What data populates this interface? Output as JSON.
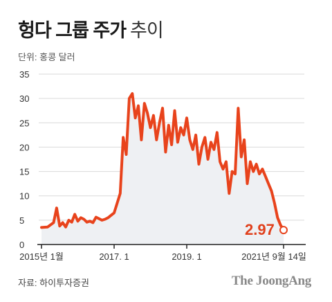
{
  "header": {
    "title_bold": "헝다 그룹 주가",
    "title_light": "추이",
    "unit": "단위: 홍콩 달러"
  },
  "footer": {
    "source": "자료: 하이투자증권",
    "brand": "The JoongAng"
  },
  "colors": {
    "line": "#e8431c",
    "area": "#eef0f3",
    "grid": "#d9d9d9",
    "axis": "#222222"
  },
  "chart_data": {
    "type": "area",
    "title": "헝다 그룹 주가",
    "ylabel": "단위: 홍콩 달러",
    "ylim": [
      0,
      35
    ],
    "yticks": [
      "0",
      "5",
      "10",
      "15",
      "20",
      "25",
      "30",
      "35"
    ],
    "xlim": [
      "2015-01",
      "2021-09"
    ],
    "xticks": [
      {
        "label": "2015년 1월",
        "date": "2015-01"
      },
      {
        "label": "2017. 1",
        "date": "2017-01"
      },
      {
        "label": "2019. 1",
        "date": "2019-01"
      },
      {
        "label": "2021년 9월 14일",
        "date": "2021-09"
      }
    ],
    "grid": "horizontal",
    "last_value_label": "2.97",
    "series": [
      {
        "x": [
          "2015-01",
          "2015-03",
          "2015-05",
          "2015-06",
          "2015-07",
          "2015-08",
          "2015-09",
          "2015-10",
          "2015-11",
          "2015-12",
          "2016-01",
          "2016-02",
          "2016-03",
          "2016-04",
          "2016-05",
          "2016-06",
          "2016-07",
          "2016-08",
          "2016-09",
          "2016-10",
          "2016-11",
          "2016-12",
          "2017-01",
          "2017-02",
          "2017-03",
          "2017-04",
          "2017-05",
          "2017-06",
          "2017-07",
          "2017-08",
          "2017-09",
          "2017-10",
          "2017-11",
          "2017-12",
          "2018-01",
          "2018-02",
          "2018-03",
          "2018-04",
          "2018-05",
          "2018-06",
          "2018-07",
          "2018-08",
          "2018-09",
          "2018-10",
          "2018-11",
          "2018-12",
          "2019-01",
          "2019-02",
          "2019-03",
          "2019-04",
          "2019-05",
          "2019-06",
          "2019-07",
          "2019-08",
          "2019-09",
          "2019-10",
          "2019-11",
          "2019-12",
          "2020-01",
          "2020-02",
          "2020-03",
          "2020-04",
          "2020-05",
          "2020-06",
          "2020-07",
          "2020-08",
          "2020-09",
          "2020-10",
          "2020-11",
          "2020-12",
          "2021-01",
          "2021-02",
          "2021-03",
          "2021-04",
          "2021-05",
          "2021-06",
          "2021-07",
          "2021-08",
          "2021-09"
        ],
        "values": [
          3.5,
          3.6,
          4.5,
          7.5,
          3.8,
          4.5,
          3.6,
          5.0,
          4.6,
          6.2,
          4.8,
          5.5,
          5.2,
          4.6,
          4.8,
          4.5,
          5.6,
          5.3,
          5.0,
          5.2,
          5.5,
          6.0,
          6.5,
          8.5,
          10.5,
          22.0,
          18.5,
          30.0,
          31.0,
          26.0,
          28.5,
          21.5,
          29.0,
          27.0,
          24.0,
          26.5,
          21.5,
          25.0,
          28.0,
          19.0,
          24.5,
          20.5,
          27.5,
          21.0,
          24.0,
          22.5,
          26.0,
          21.5,
          19.5,
          22.5,
          16.5,
          20.0,
          22.0,
          17.5,
          21.0,
          19.5,
          23.0,
          17.0,
          15.5,
          17.0,
          10.5,
          15.0,
          14.5,
          28.0,
          18.0,
          21.5,
          12.5,
          17.0,
          15.0,
          16.5,
          14.5,
          15.5,
          14.0,
          12.5,
          11.0,
          8.5,
          5.5,
          4.0,
          2.97
        ]
      }
    ]
  }
}
